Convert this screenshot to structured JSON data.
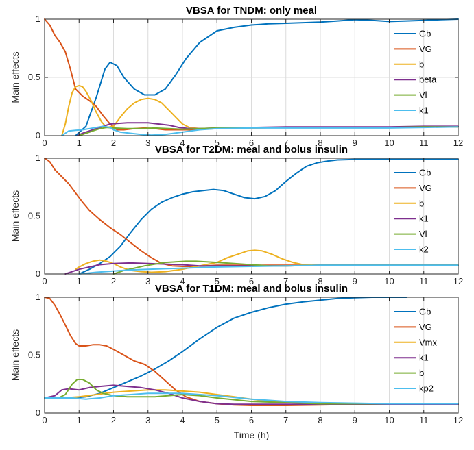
{
  "chart_data": [
    {
      "type": "line",
      "title": "VBSA for TNDM: only meal",
      "xlabel": "",
      "ylabel": "Main effects",
      "xlim": [
        0,
        12
      ],
      "ylim": [
        0,
        1
      ],
      "xticks": [
        0,
        1,
        2,
        3,
        4,
        5,
        6,
        7,
        8,
        9,
        10,
        11,
        12
      ],
      "yticks": [
        0,
        0.5,
        1
      ],
      "grid": true,
      "legend_position": "top-right",
      "series": [
        {
          "name": "Gb",
          "color": "#0072BD",
          "x": [
            0.9,
            1.2,
            1.5,
            1.75,
            1.9,
            2.1,
            2.3,
            2.6,
            2.9,
            3.2,
            3.5,
            3.8,
            4.1,
            4.5,
            5,
            5.5,
            6,
            6.5,
            7,
            7.5,
            8,
            8.5,
            9,
            9.5,
            10,
            10.5,
            11,
            11.5,
            12
          ],
          "y": [
            0,
            0.08,
            0.33,
            0.57,
            0.63,
            0.6,
            0.5,
            0.4,
            0.35,
            0.35,
            0.4,
            0.52,
            0.66,
            0.8,
            0.9,
            0.93,
            0.95,
            0.96,
            0.965,
            0.97,
            0.975,
            0.985,
            0.995,
            0.99,
            0.98,
            0.985,
            0.99,
            0.995,
            1.0
          ]
        },
        {
          "name": "VG",
          "color": "#D95319",
          "x": [
            0,
            0.15,
            0.3,
            0.45,
            0.6,
            0.75,
            0.9,
            1.1,
            1.3,
            1.5,
            1.7,
            1.9,
            2.1,
            2.3,
            2.6,
            2.9,
            3.2,
            3.5,
            3.8,
            4.2,
            4.6,
            5,
            6,
            7,
            8,
            9,
            10,
            11,
            12
          ],
          "y": [
            1,
            0.95,
            0.86,
            0.8,
            0.72,
            0.57,
            0.4,
            0.34,
            0.3,
            0.25,
            0.17,
            0.1,
            0.05,
            0.05,
            0.06,
            0.065,
            0.06,
            0.05,
            0.05,
            0.05,
            0.055,
            0.06,
            0.065,
            0.07,
            0.07,
            0.07,
            0.07,
            0.075,
            0.075
          ]
        },
        {
          "name": "b",
          "color": "#EDB120",
          "x": [
            0.5,
            0.6,
            0.7,
            0.8,
            0.9,
            1.0,
            1.1,
            1.2,
            1.35,
            1.5,
            1.65,
            1.8,
            2.0,
            2.2,
            2.4,
            2.6,
            2.8,
            3.0,
            3.2,
            3.4,
            3.6,
            3.8,
            4.0,
            4.2,
            4.5,
            5,
            6,
            7,
            8,
            9,
            10,
            11,
            12
          ],
          "y": [
            0,
            0.1,
            0.25,
            0.37,
            0.42,
            0.43,
            0.42,
            0.38,
            0.3,
            0.2,
            0.12,
            0.07,
            0.08,
            0.16,
            0.23,
            0.28,
            0.31,
            0.32,
            0.31,
            0.28,
            0.22,
            0.16,
            0.1,
            0.07,
            0.06,
            0.06,
            0.065,
            0.07,
            0.07,
            0.07,
            0.07,
            0.075,
            0.075
          ]
        },
        {
          "name": "beta",
          "color": "#7E2F8E",
          "x": [
            0.95,
            1.1,
            1.3,
            1.5,
            1.7,
            1.9,
            2.1,
            2.4,
            2.7,
            3.0,
            3.3,
            3.6,
            3.9,
            4.2,
            4.5,
            5,
            6,
            7,
            8,
            9,
            10,
            11,
            12
          ],
          "y": [
            0,
            0.02,
            0.04,
            0.06,
            0.08,
            0.1,
            0.105,
            0.11,
            0.11,
            0.11,
            0.1,
            0.09,
            0.07,
            0.06,
            0.06,
            0.065,
            0.07,
            0.075,
            0.075,
            0.075,
            0.075,
            0.08,
            0.08
          ]
        },
        {
          "name": "Vl",
          "color": "#77AC30",
          "x": [
            1.0,
            1.2,
            1.4,
            1.6,
            1.8,
            2.0,
            2.4,
            2.8,
            3.2,
            3.6,
            4.0,
            4.5,
            5,
            6,
            7,
            8,
            9,
            10,
            11,
            12
          ],
          "y": [
            0,
            0.02,
            0.04,
            0.06,
            0.07,
            0.065,
            0.06,
            0.06,
            0.065,
            0.06,
            0.055,
            0.06,
            0.065,
            0.07,
            0.07,
            0.07,
            0.07,
            0.07,
            0.075,
            0.075
          ]
        },
        {
          "name": "k1",
          "color": "#4DBEEE",
          "x": [
            0.5,
            0.6,
            0.7,
            0.9,
            1.1,
            1.3,
            1.5,
            1.7,
            1.9,
            2.0,
            2.2,
            2.5,
            2.8,
            3.1,
            3.5,
            4.0,
            4.5,
            5,
            6,
            7,
            8,
            9,
            10,
            11,
            12
          ],
          "y": [
            0,
            0.02,
            0.04,
            0.045,
            0.05,
            0.06,
            0.07,
            0.08,
            0.07,
            0.05,
            0.03,
            0.02,
            0.01,
            0.005,
            0.01,
            0.03,
            0.05,
            0.06,
            0.065,
            0.065,
            0.065,
            0.065,
            0.065,
            0.07,
            0.075
          ]
        }
      ]
    },
    {
      "type": "line",
      "title": "VBSA for T2DM: meal and bolus insulin",
      "xlabel": "",
      "ylabel": "Main effects",
      "xlim": [
        0,
        12
      ],
      "ylim": [
        0,
        1
      ],
      "xticks": [
        0,
        1,
        2,
        3,
        4,
        5,
        6,
        7,
        8,
        9,
        10,
        11,
        12
      ],
      "yticks": [
        0,
        0.5,
        1
      ],
      "grid": true,
      "legend_position": "top-right",
      "series": [
        {
          "name": "Gb",
          "color": "#0072BD",
          "x": [
            1.0,
            1.3,
            1.6,
            1.9,
            2.2,
            2.5,
            2.8,
            3.1,
            3.4,
            3.7,
            4.0,
            4.3,
            4.6,
            4.9,
            5.2,
            5.5,
            5.8,
            6.1,
            6.4,
            6.7,
            7.0,
            7.3,
            7.6,
            7.9,
            8.2,
            8.5,
            9,
            9.5,
            10,
            11,
            12
          ],
          "y": [
            0,
            0.04,
            0.09,
            0.15,
            0.24,
            0.36,
            0.47,
            0.56,
            0.62,
            0.66,
            0.69,
            0.71,
            0.72,
            0.73,
            0.72,
            0.69,
            0.66,
            0.65,
            0.67,
            0.72,
            0.8,
            0.87,
            0.93,
            0.96,
            0.975,
            0.985,
            0.99,
            0.99,
            0.99,
            0.99,
            0.99
          ]
        },
        {
          "name": "VG",
          "color": "#D95319",
          "x": [
            0,
            0.15,
            0.3,
            0.5,
            0.7,
            0.9,
            1.1,
            1.3,
            1.6,
            1.9,
            2.2,
            2.5,
            2.8,
            3.1,
            3.4,
            3.7,
            4.0,
            4.3,
            4.6,
            5,
            6,
            7,
            8,
            9,
            10,
            11,
            12
          ],
          "y": [
            1,
            0.97,
            0.9,
            0.84,
            0.78,
            0.7,
            0.62,
            0.55,
            0.47,
            0.4,
            0.34,
            0.27,
            0.2,
            0.14,
            0.09,
            0.07,
            0.065,
            0.065,
            0.07,
            0.075,
            0.075,
            0.075,
            0.075,
            0.075,
            0.075,
            0.075,
            0.075
          ]
        },
        {
          "name": "b",
          "color": "#EDB120",
          "x": [
            0.9,
            1.0,
            1.2,
            1.4,
            1.6,
            1.8,
            2.0,
            2.2,
            2.5,
            2.8,
            3.1,
            3.5,
            4.0,
            4.5,
            5.0,
            5.3,
            5.6,
            5.9,
            6.1,
            6.3,
            6.6,
            6.9,
            7.2,
            7.5,
            8,
            8.5,
            9,
            10,
            11,
            12
          ],
          "y": [
            0.04,
            0.06,
            0.09,
            0.11,
            0.12,
            0.11,
            0.09,
            0.06,
            0.03,
            0.02,
            0.015,
            0.02,
            0.04,
            0.07,
            0.1,
            0.14,
            0.17,
            0.2,
            0.205,
            0.2,
            0.17,
            0.13,
            0.1,
            0.08,
            0.075,
            0.075,
            0.075,
            0.075,
            0.075,
            0.075
          ]
        },
        {
          "name": "k1",
          "color": "#7E2F8E",
          "x": [
            0.6,
            0.8,
            1.0,
            1.3,
            1.6,
            2.0,
            2.5,
            3.0,
            3.5,
            4.0,
            4.5,
            5,
            6,
            7,
            8,
            9,
            10,
            11,
            12
          ],
          "y": [
            0,
            0.02,
            0.04,
            0.06,
            0.08,
            0.09,
            0.095,
            0.09,
            0.085,
            0.08,
            0.07,
            0.07,
            0.07,
            0.07,
            0.075,
            0.075,
            0.075,
            0.075,
            0.075
          ]
        },
        {
          "name": "Vl",
          "color": "#77AC30",
          "x": [
            2.0,
            2.3,
            2.6,
            2.9,
            3.2,
            3.5,
            3.8,
            4.1,
            4.4,
            4.7,
            5.0,
            5.5,
            6,
            6.5,
            7,
            8,
            9,
            10,
            11,
            12
          ],
          "y": [
            0,
            0.03,
            0.05,
            0.07,
            0.085,
            0.1,
            0.105,
            0.11,
            0.11,
            0.105,
            0.1,
            0.09,
            0.08,
            0.07,
            0.07,
            0.075,
            0.075,
            0.075,
            0.075,
            0.075
          ]
        },
        {
          "name": "k2",
          "color": "#4DBEEE",
          "x": [
            1.0,
            1.5,
            2.0,
            2.5,
            3.0,
            3.5,
            4.0,
            4.5,
            5,
            6,
            7,
            8,
            9,
            10,
            11,
            12
          ],
          "y": [
            0,
            0.015,
            0.025,
            0.035,
            0.04,
            0.045,
            0.05,
            0.055,
            0.06,
            0.065,
            0.07,
            0.075,
            0.075,
            0.075,
            0.075,
            0.075
          ]
        }
      ]
    },
    {
      "type": "line",
      "title": "VBSA for T1DM: meal and bolus insulin",
      "xlabel": "Time (h)",
      "ylabel": "Main effects",
      "xlim": [
        0,
        12
      ],
      "ylim": [
        0,
        1
      ],
      "xticks": [
        0,
        1,
        2,
        3,
        4,
        5,
        6,
        7,
        8,
        9,
        10,
        11,
        12
      ],
      "yticks": [
        0,
        0.5,
        1
      ],
      "grid": true,
      "legend_position": "top-right",
      "series": [
        {
          "name": "Gb",
          "color": "#0072BD",
          "x": [
            0,
            0.4,
            0.8,
            1.2,
            1.6,
            2.0,
            2.4,
            2.8,
            3.2,
            3.6,
            4.0,
            4.5,
            5.0,
            5.5,
            6.0,
            6.5,
            7.0,
            7.5,
            8.0,
            8.5,
            9.0,
            9.5,
            10.0,
            10.5
          ],
          "y": [
            0.13,
            0.13,
            0.13,
            0.14,
            0.17,
            0.22,
            0.27,
            0.32,
            0.38,
            0.45,
            0.53,
            0.64,
            0.74,
            0.82,
            0.87,
            0.91,
            0.94,
            0.96,
            0.975,
            0.99,
            0.995,
            1.0,
            1.0,
            1.0
          ]
        },
        {
          "name": "VG",
          "color": "#D95319",
          "x": [
            0,
            0.15,
            0.3,
            0.45,
            0.6,
            0.75,
            0.9,
            1.0,
            1.2,
            1.4,
            1.6,
            1.8,
            2.0,
            2.3,
            2.6,
            2.9,
            3.2,
            3.5,
            3.8,
            4.1,
            4.5,
            5,
            5.5,
            6,
            6.5,
            7,
            8,
            9,
            10,
            11,
            12
          ],
          "y": [
            1,
            0.99,
            0.93,
            0.85,
            0.76,
            0.67,
            0.6,
            0.58,
            0.58,
            0.59,
            0.59,
            0.58,
            0.55,
            0.5,
            0.45,
            0.42,
            0.36,
            0.28,
            0.2,
            0.14,
            0.1,
            0.08,
            0.07,
            0.065,
            0.065,
            0.065,
            0.07,
            0.075,
            0.075,
            0.075,
            0.075
          ]
        },
        {
          "name": "Vmx",
          "color": "#EDB120",
          "x": [
            0,
            0.5,
            1.0,
            1.5,
            2.0,
            2.5,
            3.0,
            3.5,
            4.0,
            4.5,
            5.0,
            5.5,
            6.0,
            6.5,
            7.0,
            8,
            9,
            10,
            11,
            12
          ],
          "y": [
            0.13,
            0.13,
            0.14,
            0.16,
            0.18,
            0.19,
            0.2,
            0.2,
            0.19,
            0.18,
            0.16,
            0.14,
            0.12,
            0.1,
            0.09,
            0.08,
            0.08,
            0.08,
            0.08,
            0.08
          ]
        },
        {
          "name": "k1",
          "color": "#7E2F8E",
          "x": [
            0,
            0.3,
            0.5,
            0.7,
            1.0,
            1.3,
            1.6,
            2.0,
            2.4,
            2.8,
            3.2,
            3.6,
            4.0,
            4.5,
            5,
            5.5,
            6,
            6.5,
            7,
            8,
            9,
            10,
            11,
            12
          ],
          "y": [
            0.13,
            0.15,
            0.2,
            0.21,
            0.2,
            0.22,
            0.23,
            0.24,
            0.23,
            0.22,
            0.2,
            0.17,
            0.13,
            0.1,
            0.08,
            0.075,
            0.075,
            0.075,
            0.075,
            0.075,
            0.075,
            0.075,
            0.075,
            0.075
          ]
        },
        {
          "name": "b",
          "color": "#77AC30",
          "x": [
            0,
            0.4,
            0.6,
            0.8,
            0.95,
            1.1,
            1.3,
            1.5,
            1.7,
            2.0,
            2.4,
            2.8,
            3.2,
            3.6,
            4.0,
            4.5,
            5,
            6,
            7,
            8,
            9,
            10,
            11,
            12
          ],
          "y": [
            0.13,
            0.13,
            0.16,
            0.25,
            0.29,
            0.29,
            0.26,
            0.2,
            0.17,
            0.15,
            0.14,
            0.14,
            0.14,
            0.15,
            0.16,
            0.15,
            0.13,
            0.1,
            0.09,
            0.08,
            0.08,
            0.08,
            0.08,
            0.08
          ]
        },
        {
          "name": "kp2",
          "color": "#4DBEEE",
          "x": [
            0,
            0.4,
            0.8,
            1.2,
            1.6,
            2.0,
            2.5,
            3.0,
            3.5,
            4.0,
            4.5,
            5,
            6,
            7,
            8,
            9,
            10,
            11,
            12
          ],
          "y": [
            0.13,
            0.13,
            0.13,
            0.12,
            0.13,
            0.15,
            0.16,
            0.17,
            0.17,
            0.17,
            0.16,
            0.15,
            0.12,
            0.1,
            0.09,
            0.085,
            0.08,
            0.08,
            0.08
          ]
        }
      ]
    }
  ]
}
